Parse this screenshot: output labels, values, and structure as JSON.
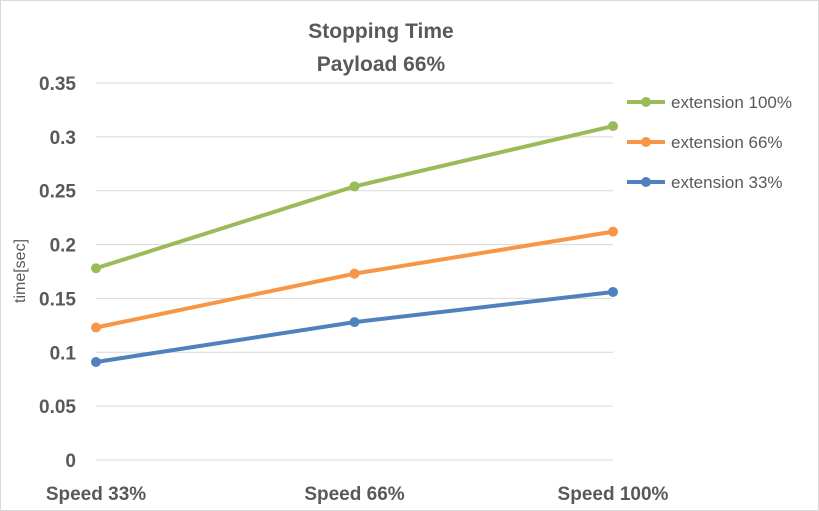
{
  "chart_data": {
    "type": "line",
    "title": [
      "Stopping Time",
      "Payload 66%"
    ],
    "xlabel": "",
    "ylabel": "time[sec]",
    "categories": [
      "Speed 33%",
      "Speed 66%",
      "Speed 100%"
    ],
    "ylim": [
      0,
      0.35
    ],
    "yticks": [
      "0",
      "0.05",
      "0.1",
      "0.15",
      "0.2",
      "0.25",
      "0.3",
      "0.35"
    ],
    "grid": true,
    "legend_position": "right",
    "series": [
      {
        "name": "extension 100%",
        "color": "#9BBB59",
        "values": [
          0.178,
          0.254,
          0.31
        ]
      },
      {
        "name": "extension 66%",
        "color": "#F79646",
        "values": [
          0.123,
          0.173,
          0.212
        ]
      },
      {
        "name": "extension 33%",
        "color": "#4F81BD",
        "values": [
          0.091,
          0.128,
          0.156
        ]
      }
    ]
  }
}
